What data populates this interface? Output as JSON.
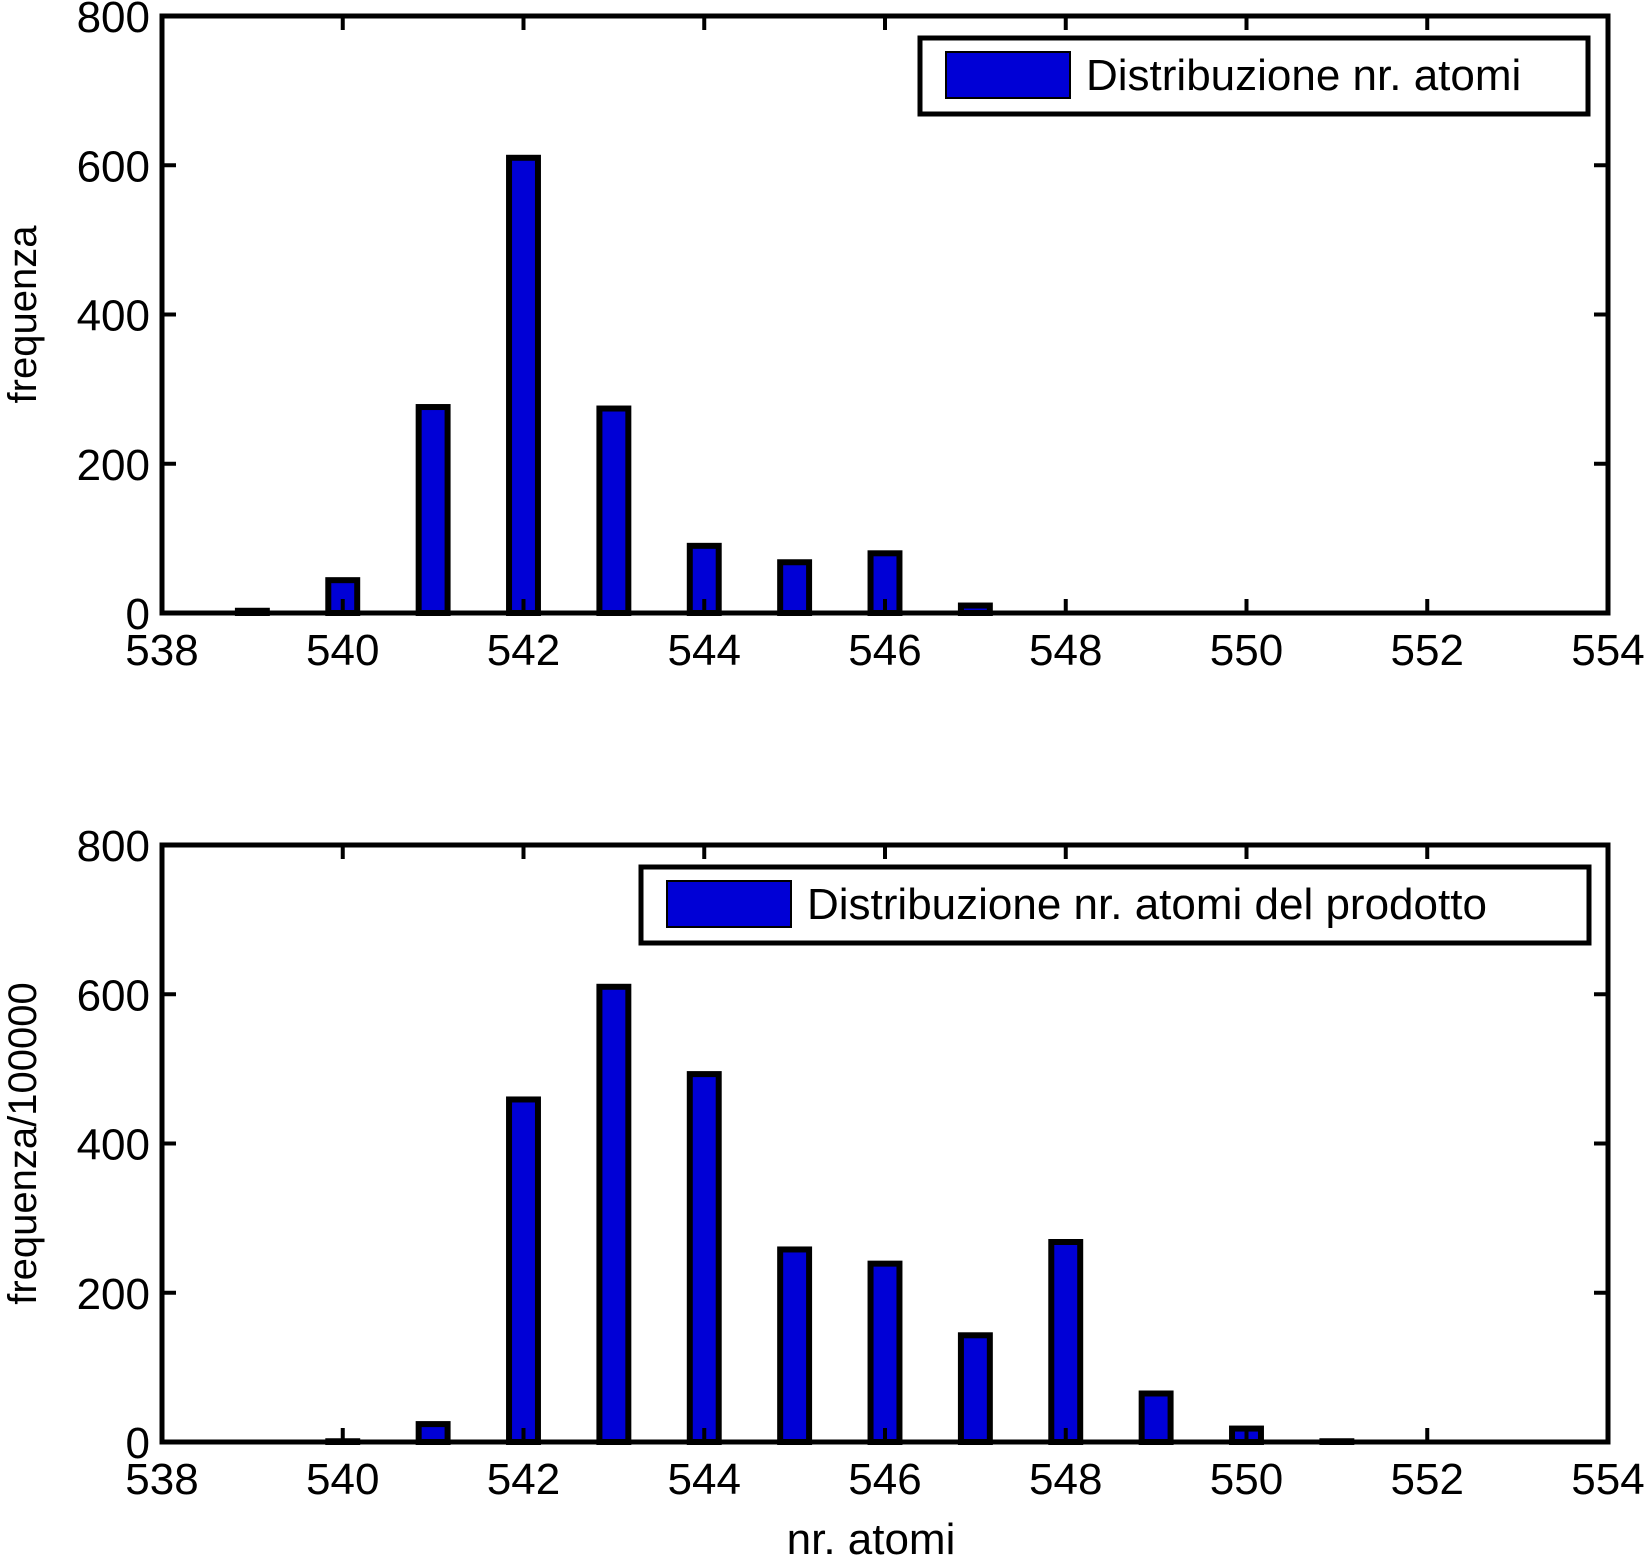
{
  "colors": {
    "bar_fill": "#0000d6",
    "bar_edge": "#000000",
    "axis": "#000000",
    "background": "#ffffff"
  },
  "chart_data": [
    {
      "type": "bar",
      "title": "",
      "xlabel": "",
      "ylabel": "frequenza",
      "xlim": [
        538,
        554
      ],
      "ylim": [
        0,
        800
      ],
      "xticks": [
        538,
        540,
        542,
        544,
        546,
        548,
        550,
        552,
        554
      ],
      "yticks": [
        0,
        200,
        400,
        600,
        800
      ],
      "grid": false,
      "legend_position": "top-right",
      "series": [
        {
          "name": "Distribuzione nr. atomi",
          "x": [
            539,
            540,
            541,
            542,
            543,
            544,
            545,
            546,
            547
          ],
          "values": [
            3,
            44,
            276,
            610,
            274,
            90,
            68,
            80,
            10
          ]
        }
      ]
    },
    {
      "type": "bar",
      "title": "",
      "xlabel": "nr. atomi",
      "ylabel": "frequenza/100000",
      "xlim": [
        538,
        554
      ],
      "ylim": [
        0,
        800
      ],
      "xticks": [
        538,
        540,
        542,
        544,
        546,
        548,
        550,
        552,
        554
      ],
      "yticks": [
        0,
        200,
        400,
        600,
        800
      ],
      "grid": false,
      "legend_position": "top-right",
      "series": [
        {
          "name": "Distribuzione nr. atomi del prodotto",
          "x": [
            540,
            541,
            542,
            543,
            544,
            545,
            546,
            547,
            548,
            549,
            550,
            551
          ],
          "values": [
            1,
            24,
            459,
            610,
            493,
            258,
            239,
            143,
            268,
            65,
            18,
            1
          ]
        }
      ]
    }
  ]
}
